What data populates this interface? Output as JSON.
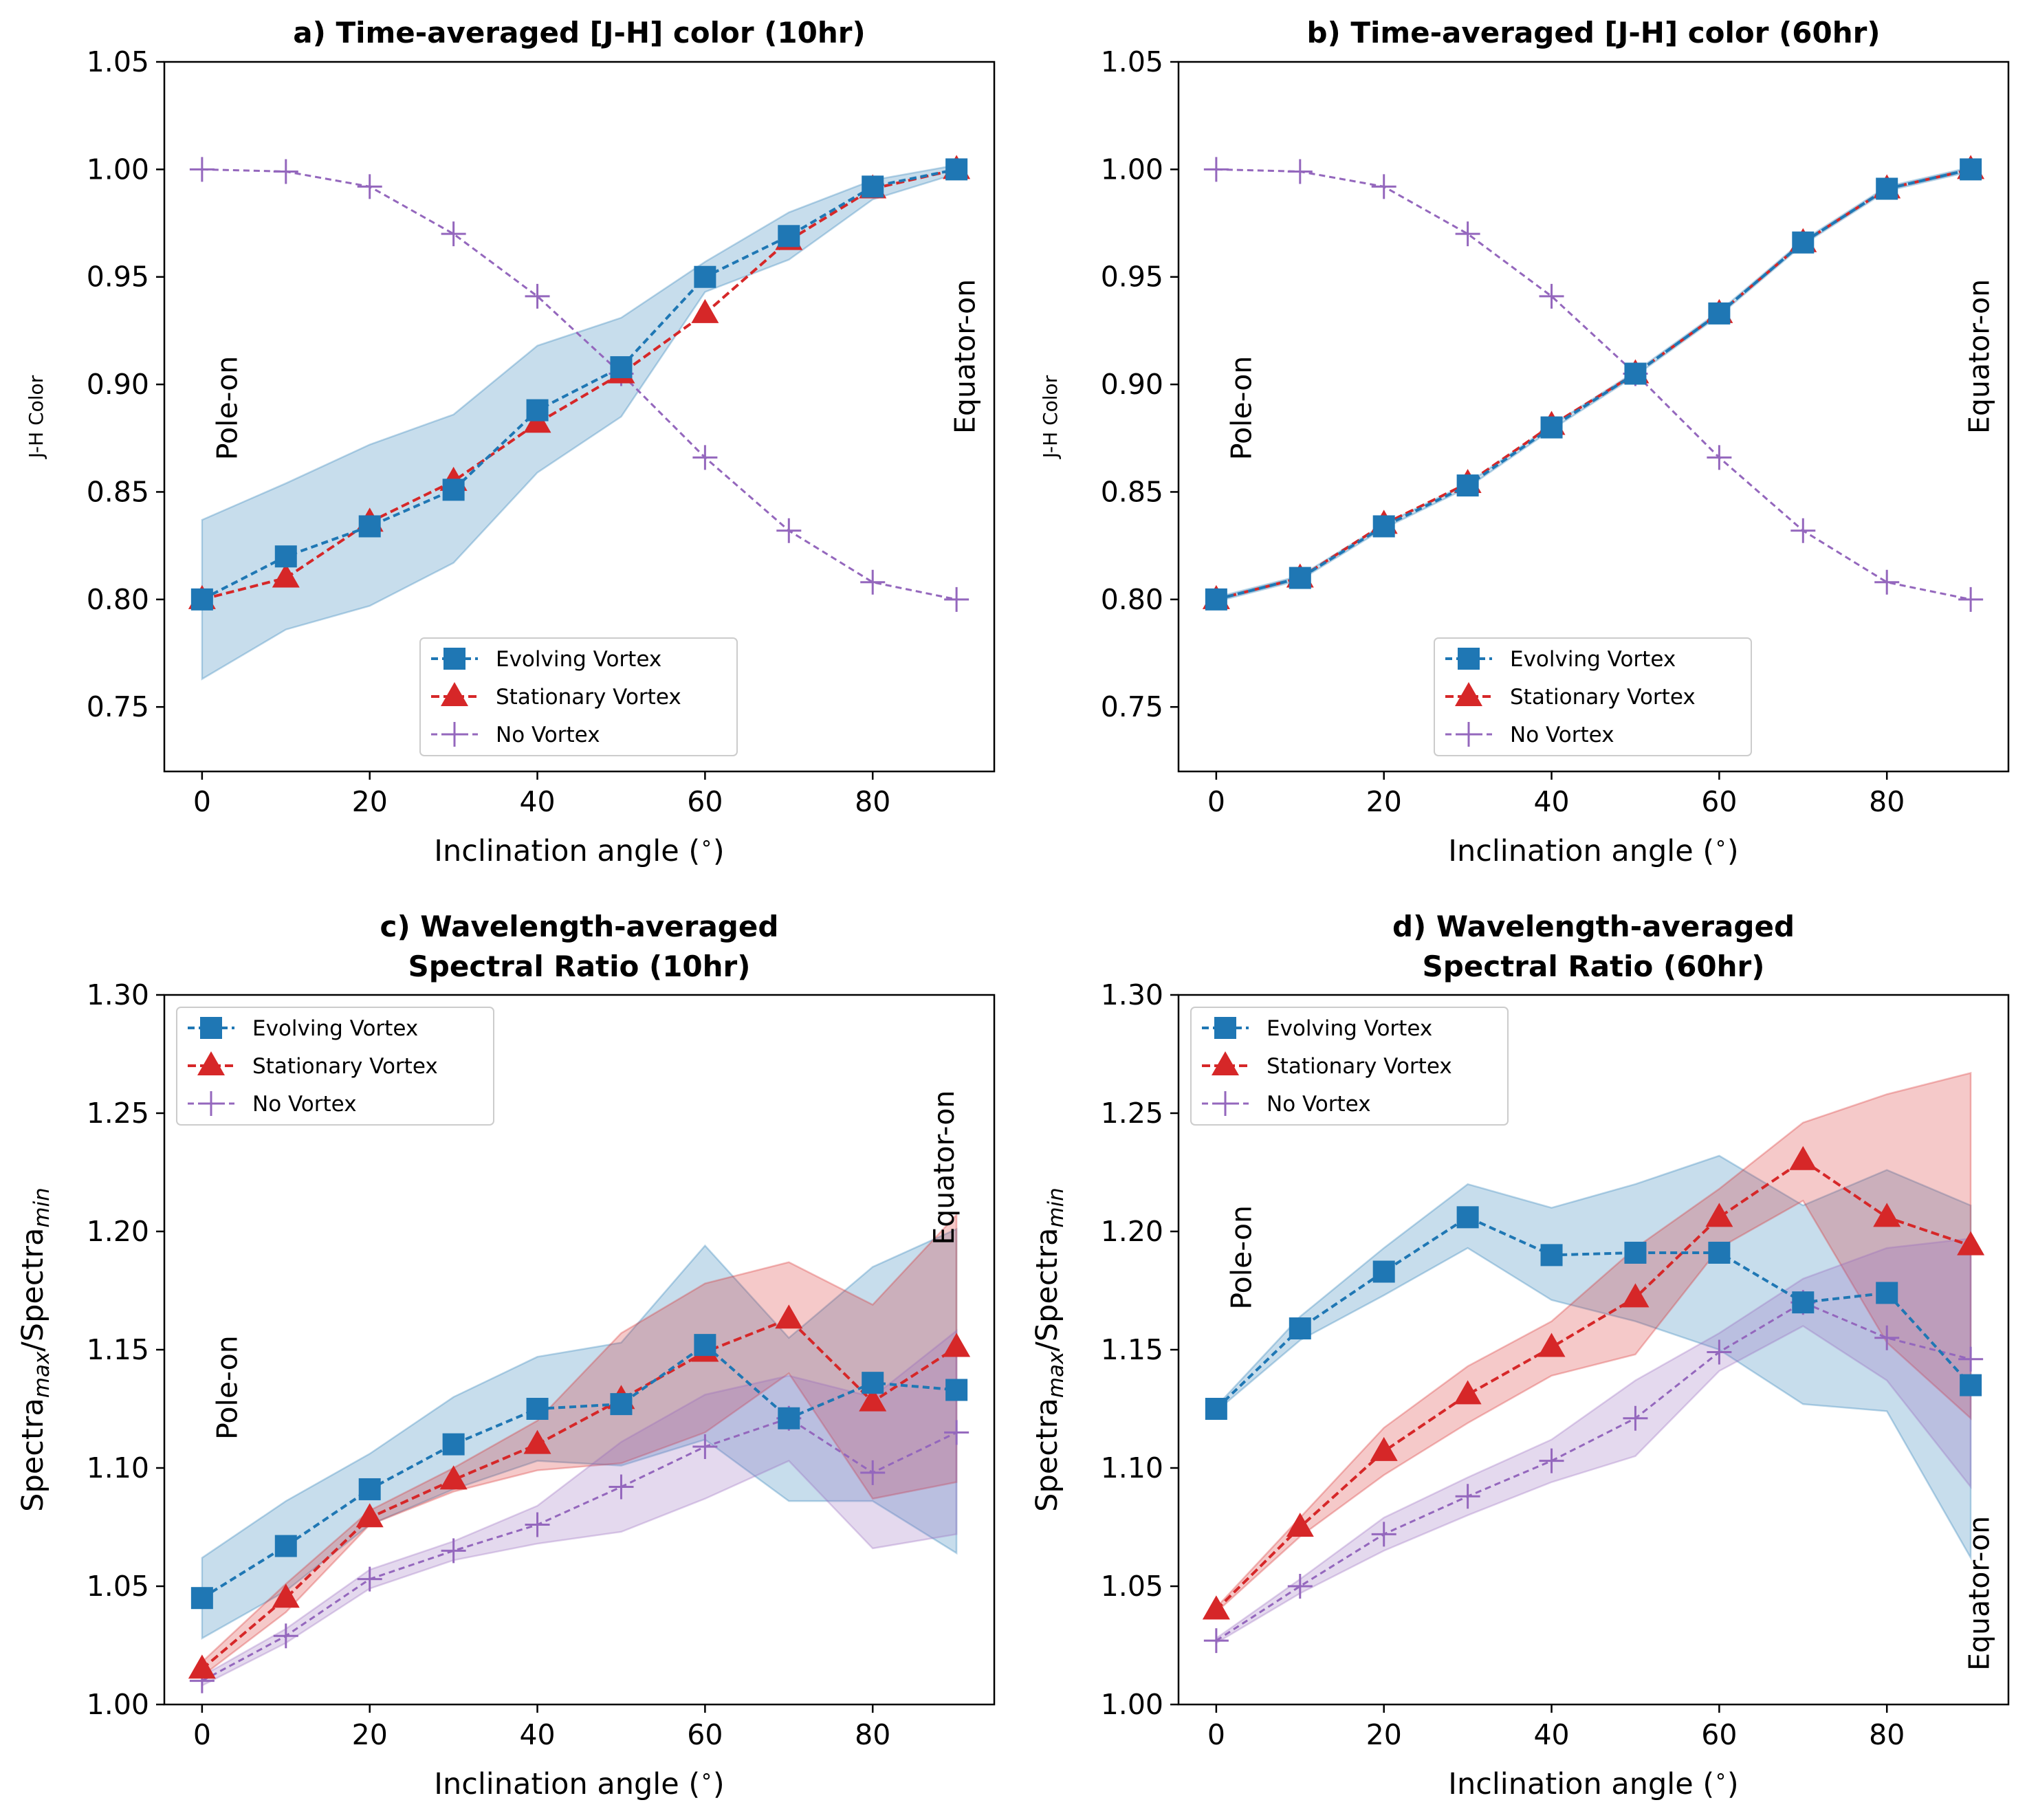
{
  "chart_data": [
    {
      "type": "line",
      "panel": "a",
      "title": [
        "a) Time-averaged [J-H] color (10hr)"
      ],
      "xlabel": "Inclination angle ($^\\circ$)",
      "xlabel_text": "Inclination angle (",
      "xlabel_sup": "∘",
      "xlabel_close": ")",
      "ylabel": "J-H Color",
      "ylabel_sub": "",
      "xlim": [
        -4.5,
        94.5
      ],
      "ylim": [
        0.72,
        1.05
      ],
      "xticks": [
        0,
        20,
        40,
        60,
        80
      ],
      "yticks": [
        0.75,
        0.8,
        0.85,
        0.9,
        0.95,
        1.0,
        1.05
      ],
      "ytick_labels": [
        "0.75",
        "0.80",
        "0.85",
        "0.90",
        "0.95",
        "1.00",
        "1.05"
      ],
      "grid": false,
      "legend_position": "lower-center",
      "annotations": [
        {
          "text": "Pole-on",
          "x": 3,
          "y": 0.889
        },
        {
          "text": "Equator-on",
          "x": 91,
          "y": 0.913
        }
      ],
      "x": [
        0,
        10,
        20,
        30,
        40,
        50,
        60,
        70,
        80,
        90
      ],
      "series": [
        {
          "name": "Evolving Vortex",
          "color": "#1f77b4",
          "marker": "square",
          "values": [
            0.8,
            0.82,
            0.834,
            0.851,
            0.888,
            0.908,
            0.95,
            0.969,
            0.992,
            1.0
          ],
          "band_low": [
            0.763,
            0.786,
            0.797,
            0.817,
            0.859,
            0.885,
            0.943,
            0.958,
            0.986,
            0.998
          ],
          "band_high": [
            0.837,
            0.854,
            0.872,
            0.886,
            0.918,
            0.931,
            0.957,
            0.98,
            0.995,
            1.002
          ]
        },
        {
          "name": "Stationary Vortex",
          "color": "#d62728",
          "marker": "triangle",
          "values": [
            0.8,
            0.81,
            0.836,
            0.855,
            0.882,
            0.905,
            0.933,
            0.967,
            0.991,
            1.0
          ]
        },
        {
          "name": "No Vortex",
          "color": "#9467bd",
          "marker": "plus",
          "values": [
            1.0,
            0.999,
            0.992,
            0.97,
            0.941,
            0.905,
            0.866,
            0.832,
            0.808,
            0.8
          ]
        }
      ]
    },
    {
      "type": "line",
      "panel": "b",
      "title": [
        "b) Time-averaged [J-H] color (60hr)"
      ],
      "xlabel": "Inclination angle ($^\\circ$)",
      "xlabel_text": "Inclination angle (",
      "xlabel_sup": "∘",
      "xlabel_close": ")",
      "ylabel": "J-H Color",
      "ylabel_sub": "",
      "xlim": [
        -4.5,
        94.5
      ],
      "ylim": [
        0.72,
        1.05
      ],
      "xticks": [
        0,
        20,
        40,
        60,
        80
      ],
      "yticks": [
        0.75,
        0.8,
        0.85,
        0.9,
        0.95,
        1.0,
        1.05
      ],
      "ytick_labels": [
        "0.75",
        "0.80",
        "0.85",
        "0.90",
        "0.95",
        "1.00",
        "1.05"
      ],
      "grid": false,
      "legend_position": "lower-center",
      "annotations": [
        {
          "text": "Pole-on",
          "x": 3,
          "y": 0.889
        },
        {
          "text": "Equator-on",
          "x": 91,
          "y": 0.913
        }
      ],
      "x": [
        0,
        10,
        20,
        30,
        40,
        50,
        60,
        70,
        80,
        90
      ],
      "series": [
        {
          "name": "Evolving Vortex",
          "color": "#1f77b4",
          "marker": "square",
          "values": [
            0.8,
            0.81,
            0.834,
            0.853,
            0.88,
            0.905,
            0.933,
            0.966,
            0.991,
            1.0
          ],
          "band_low": [
            0.799,
            0.809,
            0.833,
            0.852,
            0.879,
            0.904,
            0.932,
            0.965,
            0.99,
            0.999
          ],
          "band_high": [
            0.801,
            0.811,
            0.835,
            0.854,
            0.881,
            0.906,
            0.934,
            0.967,
            0.992,
            1.001
          ]
        },
        {
          "name": "Stationary Vortex",
          "color": "#d62728",
          "marker": "triangle",
          "values": [
            0.8,
            0.81,
            0.835,
            0.854,
            0.881,
            0.905,
            0.933,
            0.966,
            0.991,
            1.0
          ]
        },
        {
          "name": "No Vortex",
          "color": "#9467bd",
          "marker": "plus",
          "values": [
            1.0,
            0.999,
            0.992,
            0.97,
            0.941,
            0.905,
            0.866,
            0.832,
            0.808,
            0.8
          ]
        }
      ]
    },
    {
      "type": "line",
      "panel": "c",
      "title": [
        "c) Wavelength-averaged",
        "Spectral Ratio (10hr)"
      ],
      "xlabel": "Inclination angle ($^\\circ$)",
      "xlabel_text": "Inclination angle (",
      "xlabel_sup": "∘",
      "xlabel_close": ")",
      "ylabel": "Spectra_max/Spectra_min",
      "ylabel_a": "Spectra",
      "ylabel_sub1": "max",
      "ylabel_b": "/Spectra",
      "ylabel_sub2": "min",
      "xlim": [
        -4.5,
        94.5
      ],
      "ylim": [
        1.0,
        1.3
      ],
      "xticks": [
        0,
        20,
        40,
        60,
        80
      ],
      "yticks": [
        1.0,
        1.05,
        1.1,
        1.15,
        1.2,
        1.25,
        1.3
      ],
      "ytick_labels": [
        "1.00",
        "1.05",
        "1.10",
        "1.15",
        "1.20",
        "1.25",
        "1.30"
      ],
      "grid": false,
      "legend_position": "upper-left",
      "annotations": [
        {
          "text": "Pole-on",
          "x": 3,
          "y": 1.134
        },
        {
          "text": "Equator-on",
          "x": 88.5,
          "y": 1.227
        }
      ],
      "x": [
        0,
        10,
        20,
        30,
        40,
        50,
        60,
        70,
        80,
        90
      ],
      "series": [
        {
          "name": "Evolving Vortex",
          "color": "#1f77b4",
          "marker": "square",
          "values": [
            1.045,
            1.067,
            1.091,
            1.11,
            1.125,
            1.127,
            1.152,
            1.121,
            1.136,
            1.133
          ],
          "band_low": [
            1.028,
            1.048,
            1.076,
            1.091,
            1.103,
            1.101,
            1.112,
            1.086,
            1.086,
            1.064
          ],
          "band_high": [
            1.062,
            1.086,
            1.106,
            1.13,
            1.147,
            1.153,
            1.194,
            1.155,
            1.185,
            1.201
          ]
        },
        {
          "name": "Stationary Vortex",
          "color": "#d62728",
          "marker": "triangle",
          "values": [
            1.015,
            1.045,
            1.079,
            1.095,
            1.11,
            1.129,
            1.149,
            1.163,
            1.128,
            1.151
          ],
          "band_low": [
            1.012,
            1.039,
            1.076,
            1.09,
            1.099,
            1.102,
            1.115,
            1.14,
            1.087,
            1.094
          ],
          "band_high": [
            1.018,
            1.051,
            1.082,
            1.1,
            1.12,
            1.157,
            1.178,
            1.187,
            1.169,
            1.207
          ]
        },
        {
          "name": "No Vortex",
          "color": "#9467bd",
          "marker": "plus",
          "values": [
            1.01,
            1.029,
            1.053,
            1.065,
            1.076,
            1.092,
            1.109,
            1.121,
            1.098,
            1.115
          ],
          "band_low": [
            1.008,
            1.026,
            1.049,
            1.061,
            1.068,
            1.073,
            1.087,
            1.103,
            1.066,
            1.072
          ],
          "band_high": [
            1.012,
            1.032,
            1.057,
            1.069,
            1.084,
            1.111,
            1.131,
            1.139,
            1.13,
            1.158
          ]
        }
      ]
    },
    {
      "type": "line",
      "panel": "d",
      "title": [
        "d) Wavelength-averaged",
        "Spectral Ratio (60hr)"
      ],
      "xlabel": "Inclination angle ($^\\circ$)",
      "xlabel_text": "Inclination angle (",
      "xlabel_sup": "∘",
      "xlabel_close": ")",
      "ylabel": "Spectra_max/Spectra_min",
      "ylabel_a": "Spectra",
      "ylabel_sub1": "max",
      "ylabel_b": "/Spectra",
      "ylabel_sub2": "min",
      "xlim": [
        -4.5,
        94.5
      ],
      "ylim": [
        1.0,
        1.3
      ],
      "xticks": [
        0,
        20,
        40,
        60,
        80
      ],
      "yticks": [
        1.0,
        1.05,
        1.1,
        1.15,
        1.2,
        1.25,
        1.3
      ],
      "ytick_labels": [
        "1.00",
        "1.05",
        "1.10",
        "1.15",
        "1.20",
        "1.25",
        "1.30"
      ],
      "grid": false,
      "legend_position": "upper-left",
      "annotations": [
        {
          "text": "Pole-on",
          "x": 3,
          "y": 1.189
        },
        {
          "text": "Equator-on",
          "x": 91,
          "y": 1.047
        }
      ],
      "x": [
        0,
        10,
        20,
        30,
        40,
        50,
        60,
        70,
        80,
        90
      ],
      "series": [
        {
          "name": "Evolving Vortex",
          "color": "#1f77b4",
          "marker": "square",
          "values": [
            1.125,
            1.159,
            1.183,
            1.206,
            1.19,
            1.191,
            1.191,
            1.17,
            1.174,
            1.135
          ],
          "band_low": [
            1.124,
            1.154,
            1.173,
            1.193,
            1.171,
            1.162,
            1.15,
            1.127,
            1.124,
            1.062
          ],
          "band_high": [
            1.126,
            1.164,
            1.193,
            1.22,
            1.21,
            1.22,
            1.232,
            1.211,
            1.226,
            1.211
          ]
        },
        {
          "name": "Stationary Vortex",
          "color": "#d62728",
          "marker": "triangle",
          "values": [
            1.04,
            1.075,
            1.107,
            1.131,
            1.151,
            1.172,
            1.206,
            1.23,
            1.206,
            1.194
          ],
          "band_low": [
            1.039,
            1.071,
            1.097,
            1.119,
            1.139,
            1.148,
            1.193,
            1.213,
            1.153,
            1.121
          ],
          "band_high": [
            1.041,
            1.079,
            1.117,
            1.143,
            1.162,
            1.193,
            1.218,
            1.246,
            1.258,
            1.267
          ]
        },
        {
          "name": "No Vortex",
          "color": "#9467bd",
          "marker": "plus",
          "values": [
            1.027,
            1.05,
            1.072,
            1.088,
            1.103,
            1.121,
            1.149,
            1.17,
            1.155,
            1.146
          ],
          "band_low": [
            1.026,
            1.047,
            1.065,
            1.08,
            1.094,
            1.105,
            1.141,
            1.16,
            1.137,
            1.092
          ],
          "band_high": [
            1.028,
            1.053,
            1.079,
            1.096,
            1.112,
            1.137,
            1.157,
            1.18,
            1.193,
            1.197
          ]
        }
      ]
    }
  ]
}
